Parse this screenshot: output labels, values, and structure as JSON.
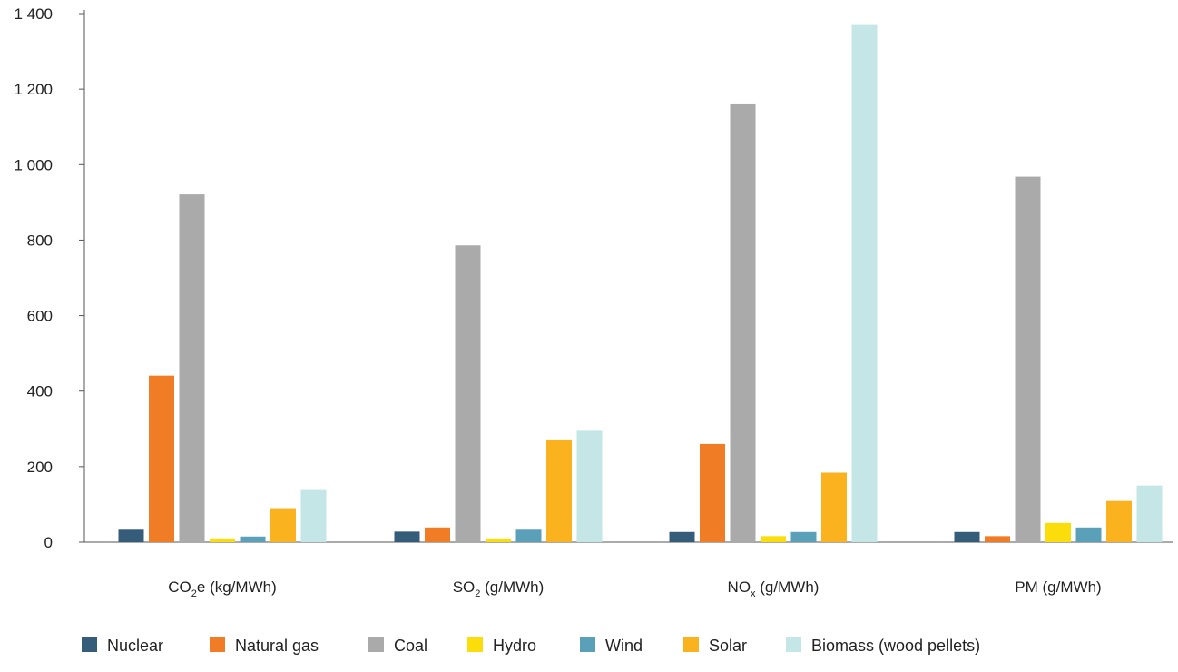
{
  "chart_data": {
    "type": "bar",
    "categories": [
      {
        "main": "CO",
        "sub": "2",
        "rest": "e (kg/MWh)"
      },
      {
        "main": "SO",
        "sub": "2",
        "rest": " (g/MWh)"
      },
      {
        "main": "NO",
        "sub": "x",
        "rest": " (g/MWh)"
      },
      {
        "main": "PM (g/MWh)",
        "sub": "",
        "rest": ""
      }
    ],
    "series": [
      {
        "name": "Nuclear",
        "color": "#355c78",
        "values": [
          33,
          28,
          27,
          27
        ]
      },
      {
        "name": "Natural gas",
        "color": "#f07c26",
        "values": [
          441,
          39,
          260,
          16
        ]
      },
      {
        "name": "Coal",
        "color": "#aaaaab",
        "values": [
          921,
          786,
          1162,
          968
        ]
      },
      {
        "name": "Hydro",
        "color": "#fadd0a",
        "values": [
          10,
          10,
          16,
          51
        ]
      },
      {
        "name": "Wind",
        "color": "#5aa0b8",
        "values": [
          15,
          33,
          27,
          39
        ]
      },
      {
        "name": "Solar",
        "color": "#fbb21f",
        "values": [
          90,
          272,
          184,
          109
        ]
      },
      {
        "name": "Biomass (wood pellets)",
        "color": "#c4e6e7",
        "values": [
          138,
          295,
          1372,
          150
        ]
      }
    ],
    "ylim": [
      0,
      1400
    ],
    "yticks": [
      {
        "value": 0,
        "label": "0"
      },
      {
        "value": 200,
        "label": "200"
      },
      {
        "value": 400,
        "label": "400"
      },
      {
        "value": 600,
        "label": "600"
      },
      {
        "value": 800,
        "label": "800"
      },
      {
        "value": 1000,
        "label": "1 000"
      },
      {
        "value": 1200,
        "label": "1 200"
      },
      {
        "value": 1400,
        "label": "1 400"
      }
    ],
    "title": "",
    "xlabel": "",
    "ylabel": "",
    "grid": false,
    "legend_position": "bottom"
  }
}
